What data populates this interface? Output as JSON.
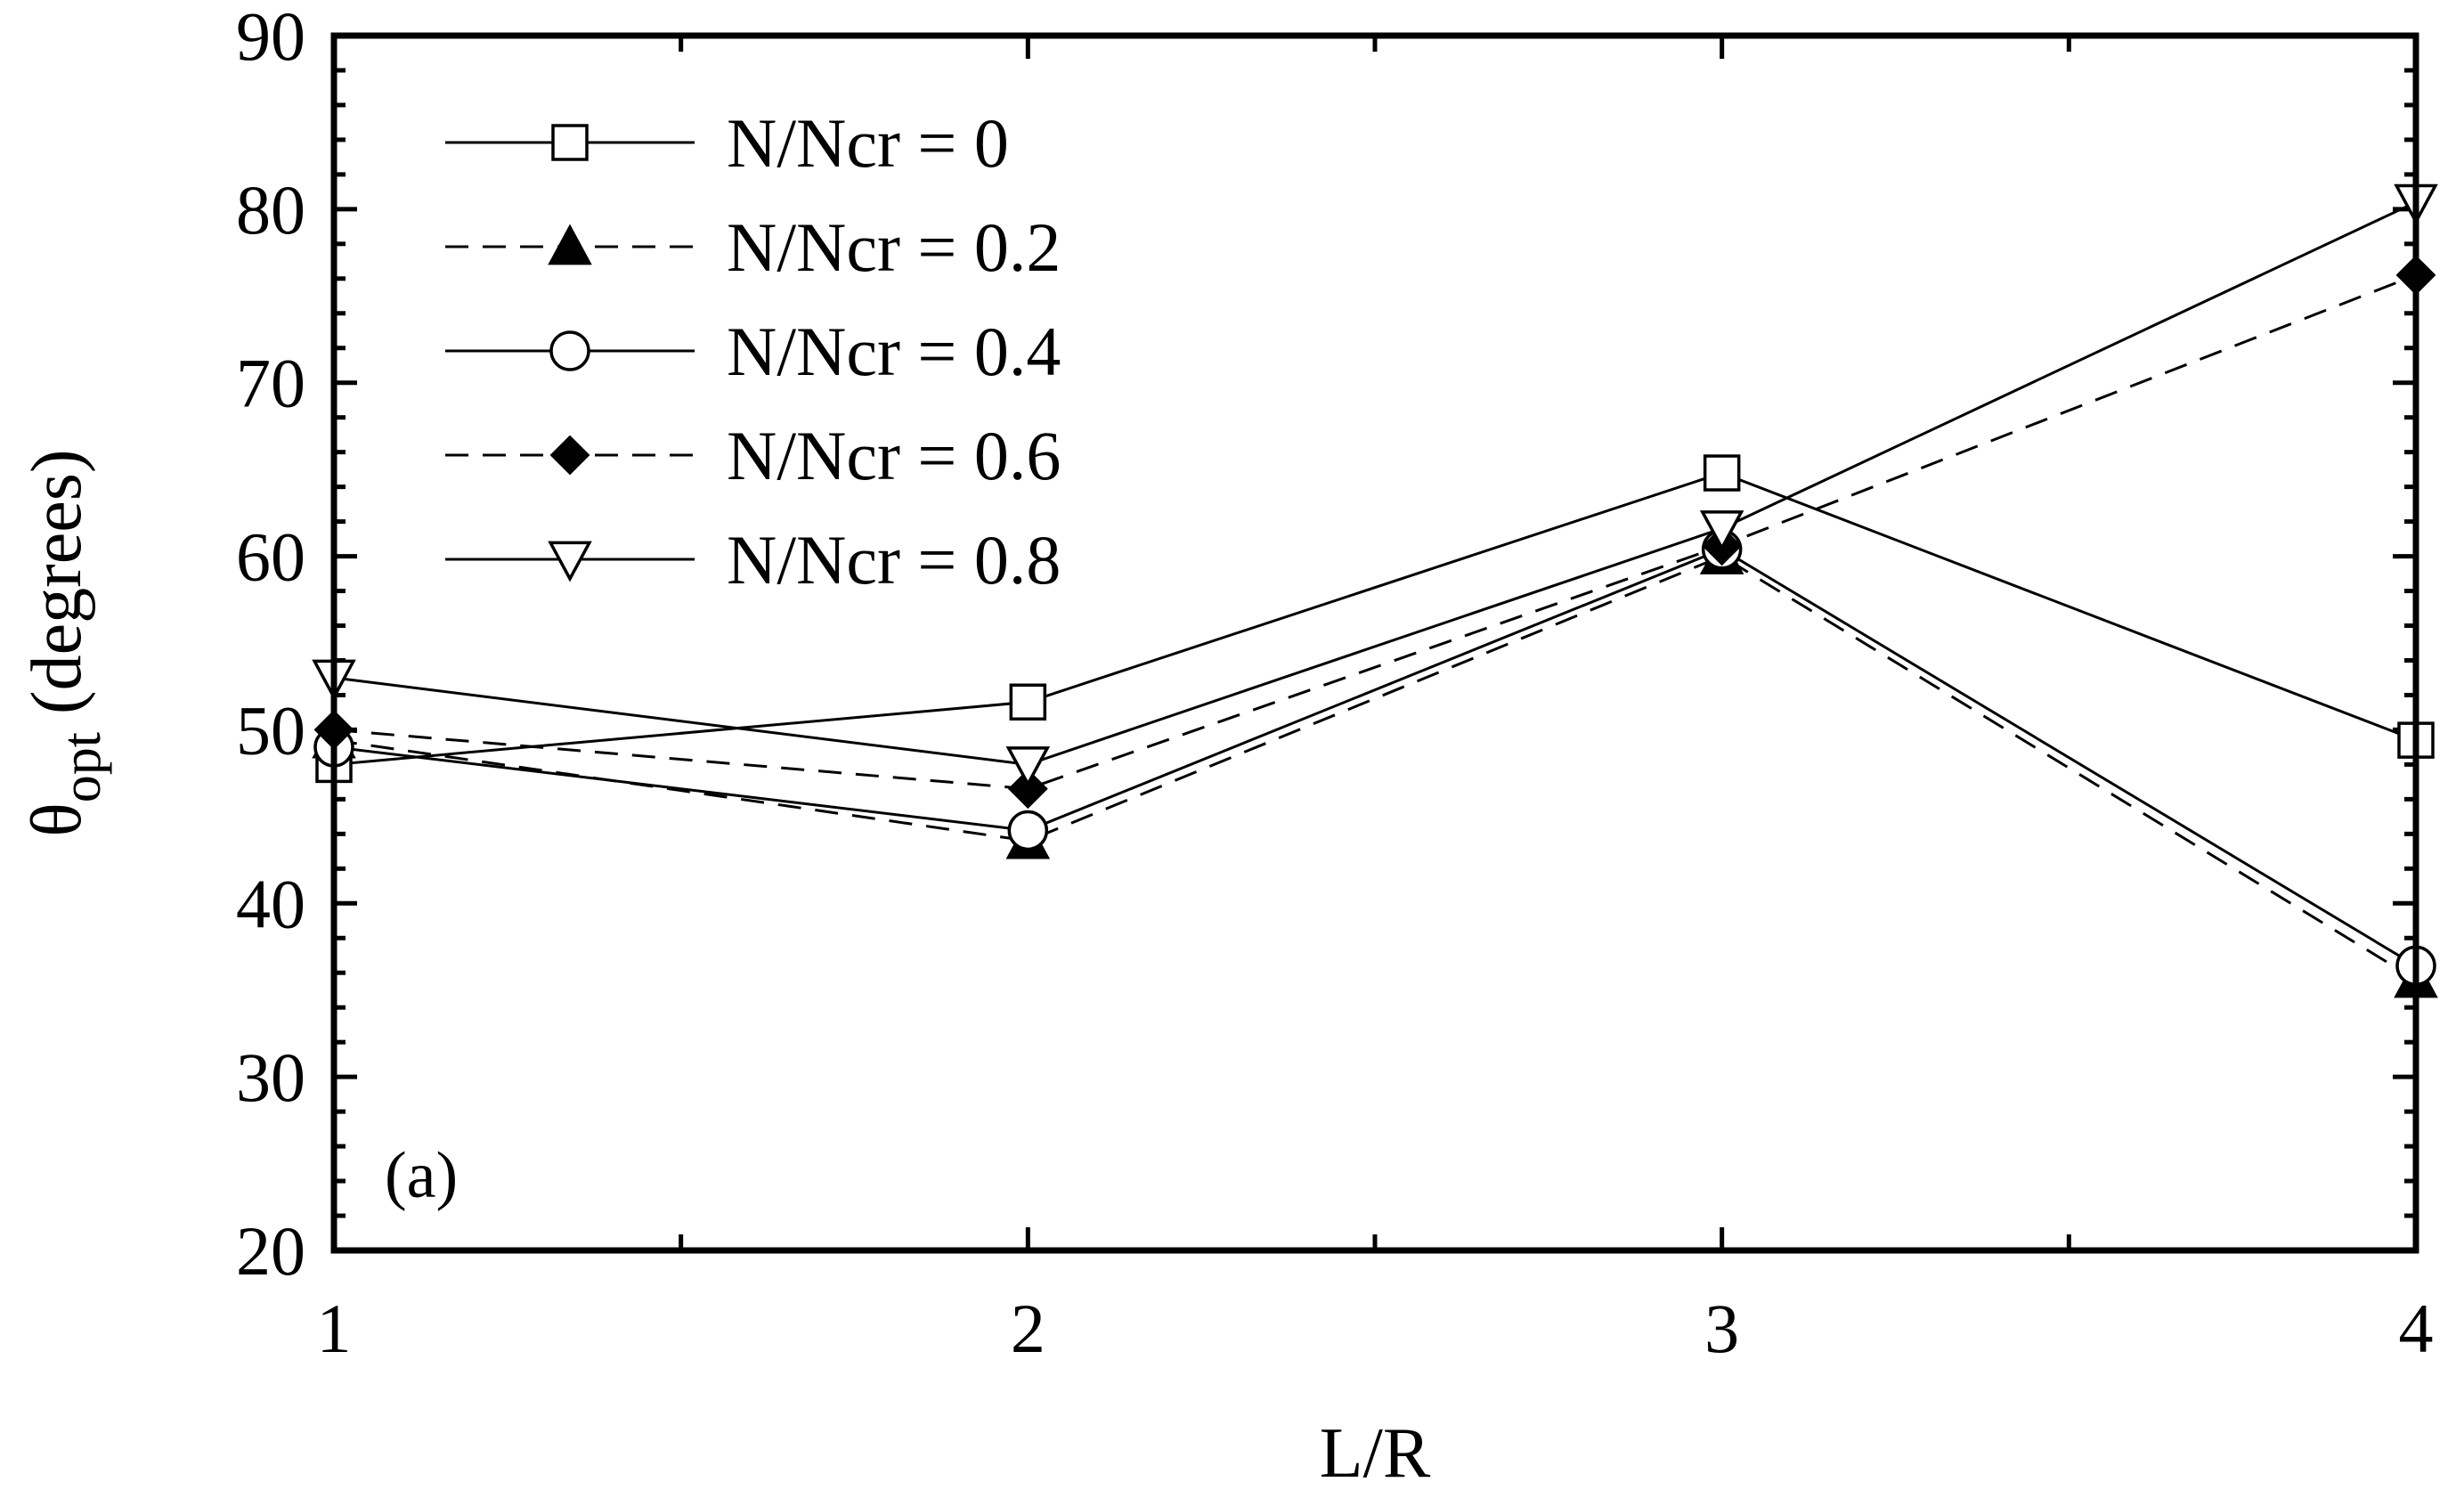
{
  "chart_data": {
    "type": "line",
    "xlabel": "L/R",
    "ylabel": {
      "main": "θ",
      "subscript": "opt",
      "suffix": " (degrees)"
    },
    "panel_label": "(a)",
    "xlim": [
      1,
      4
    ],
    "ylim": [
      20,
      90
    ],
    "x_ticks": [
      "1",
      "2",
      "3",
      "4"
    ],
    "y_ticks": [
      "20",
      "30",
      "40",
      "50",
      "60",
      "70",
      "80",
      "90"
    ],
    "grid": false,
    "legend_position": "top-left",
    "x": [
      1,
      2,
      3,
      4
    ],
    "series": [
      {
        "name": "N/Ncr = 0",
        "marker": "square",
        "line": "solid",
        "values": [
          48.0,
          51.6,
          64.8,
          49.4
        ]
      },
      {
        "name": "N/Ncr = 0.2",
        "marker": "triangle-filled",
        "line": "dashed",
        "values": [
          49.4,
          43.6,
          60.0,
          35.6
        ]
      },
      {
        "name": "N/Ncr = 0.4",
        "marker": "circle",
        "line": "solid",
        "values": [
          49.0,
          44.2,
          60.4,
          36.4
        ]
      },
      {
        "name": "N/Ncr = 0.6",
        "marker": "diamond-filled",
        "line": "dashed",
        "values": [
          50.0,
          46.6,
          60.6,
          76.2
        ]
      },
      {
        "name": "N/Ncr = 0.8",
        "marker": "triangle-down",
        "line": "solid",
        "values": [
          53.0,
          48.0,
          61.6,
          80.4
        ]
      }
    ]
  }
}
